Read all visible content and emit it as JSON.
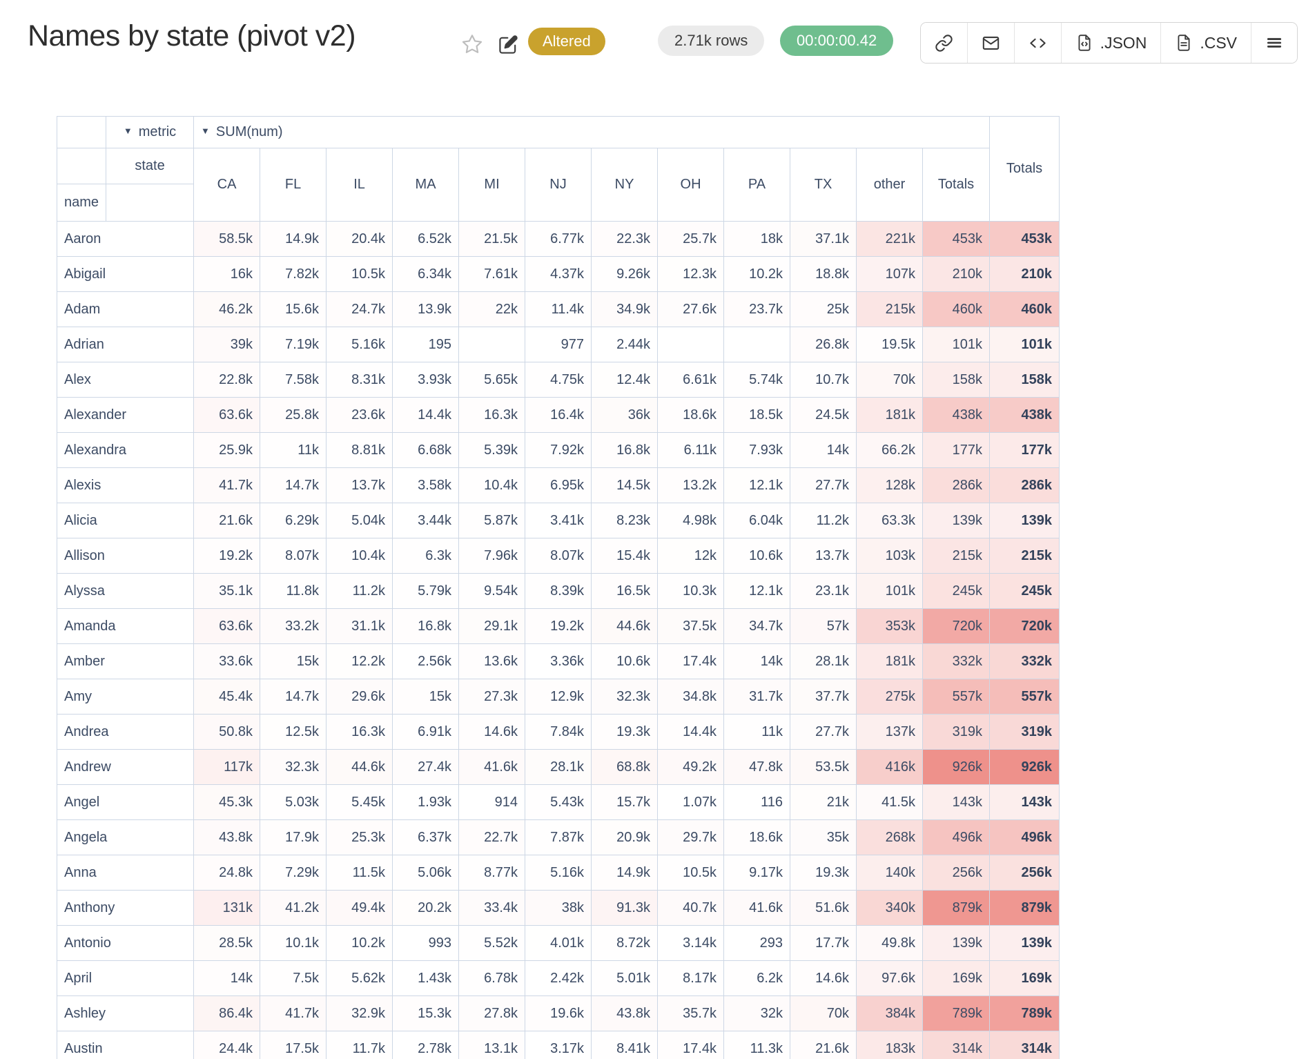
{
  "header": {
    "title": "Names by state (pivot v2)",
    "status_badge": "Altered",
    "rows_pill": "2.71k rows",
    "duration_pill": "00:00:00.42",
    "toolbar": {
      "json_label": ".JSON",
      "csv_label": ".CSV",
      "icons": [
        "link-icon",
        "mail-icon",
        "code-icon",
        "file-json-icon",
        "file-csv-icon",
        "menu-icon"
      ]
    }
  },
  "colors": {
    "badge_gold": "#c9a22d",
    "timer_green": "#6fbe8e",
    "heatmap_max": "#ee918b",
    "table_border": "#cdd7e5",
    "table_text": "#3c4b64"
  },
  "pivot": {
    "dropdown_arrow": "▼",
    "metric_label": "metric",
    "aggregator": "SUM(num)",
    "col_attr": "state",
    "row_attr": "name",
    "grand_total_label": "Totals",
    "value_columns": [
      "CA",
      "FL",
      "IL",
      "MA",
      "MI",
      "NJ",
      "NY",
      "OH",
      "PA",
      "TX",
      "other",
      "Totals"
    ],
    "rows": [
      {
        "name": "Aaron",
        "values": [
          "58.5k",
          "14.9k",
          "20.4k",
          "6.52k",
          "21.5k",
          "6.77k",
          "22.3k",
          "25.7k",
          "18k",
          "37.1k",
          "221k",
          "453k"
        ],
        "grand": "453k"
      },
      {
        "name": "Abigail",
        "values": [
          "16k",
          "7.82k",
          "10.5k",
          "6.34k",
          "7.61k",
          "4.37k",
          "9.26k",
          "12.3k",
          "10.2k",
          "18.8k",
          "107k",
          "210k"
        ],
        "grand": "210k"
      },
      {
        "name": "Adam",
        "values": [
          "46.2k",
          "15.6k",
          "24.7k",
          "13.9k",
          "22k",
          "11.4k",
          "34.9k",
          "27.6k",
          "23.7k",
          "25k",
          "215k",
          "460k"
        ],
        "grand": "460k"
      },
      {
        "name": "Adrian",
        "values": [
          "39k",
          "7.19k",
          "5.16k",
          "195",
          "",
          "977",
          "2.44k",
          "",
          "",
          "26.8k",
          "19.5k",
          "101k"
        ],
        "grand": "101k"
      },
      {
        "name": "Alex",
        "values": [
          "22.8k",
          "7.58k",
          "8.31k",
          "3.93k",
          "5.65k",
          "4.75k",
          "12.4k",
          "6.61k",
          "5.74k",
          "10.7k",
          "70k",
          "158k"
        ],
        "grand": "158k"
      },
      {
        "name": "Alexander",
        "values": [
          "63.6k",
          "25.8k",
          "23.6k",
          "14.4k",
          "16.3k",
          "16.4k",
          "36k",
          "18.6k",
          "18.5k",
          "24.5k",
          "181k",
          "438k"
        ],
        "grand": "438k"
      },
      {
        "name": "Alexandra",
        "values": [
          "25.9k",
          "11k",
          "8.81k",
          "6.68k",
          "5.39k",
          "7.92k",
          "16.8k",
          "6.11k",
          "7.93k",
          "14k",
          "66.2k",
          "177k"
        ],
        "grand": "177k"
      },
      {
        "name": "Alexis",
        "values": [
          "41.7k",
          "14.7k",
          "13.7k",
          "3.58k",
          "10.4k",
          "6.95k",
          "14.5k",
          "13.2k",
          "12.1k",
          "27.7k",
          "128k",
          "286k"
        ],
        "grand": "286k"
      },
      {
        "name": "Alicia",
        "values": [
          "21.6k",
          "6.29k",
          "5.04k",
          "3.44k",
          "5.87k",
          "3.41k",
          "8.23k",
          "4.98k",
          "6.04k",
          "11.2k",
          "63.3k",
          "139k"
        ],
        "grand": "139k"
      },
      {
        "name": "Allison",
        "values": [
          "19.2k",
          "8.07k",
          "10.4k",
          "6.3k",
          "7.96k",
          "8.07k",
          "15.4k",
          "12k",
          "10.6k",
          "13.7k",
          "103k",
          "215k"
        ],
        "grand": "215k"
      },
      {
        "name": "Alyssa",
        "values": [
          "35.1k",
          "11.8k",
          "11.2k",
          "5.79k",
          "9.54k",
          "8.39k",
          "16.5k",
          "10.3k",
          "12.1k",
          "23.1k",
          "101k",
          "245k"
        ],
        "grand": "245k"
      },
      {
        "name": "Amanda",
        "values": [
          "63.6k",
          "33.2k",
          "31.1k",
          "16.8k",
          "29.1k",
          "19.2k",
          "44.6k",
          "37.5k",
          "34.7k",
          "57k",
          "353k",
          "720k"
        ],
        "grand": "720k"
      },
      {
        "name": "Amber",
        "values": [
          "33.6k",
          "15k",
          "12.2k",
          "2.56k",
          "13.6k",
          "3.36k",
          "10.6k",
          "17.4k",
          "14k",
          "28.1k",
          "181k",
          "332k"
        ],
        "grand": "332k"
      },
      {
        "name": "Amy",
        "values": [
          "45.4k",
          "14.7k",
          "29.6k",
          "15k",
          "27.3k",
          "12.9k",
          "32.3k",
          "34.8k",
          "31.7k",
          "37.7k",
          "275k",
          "557k"
        ],
        "grand": "557k"
      },
      {
        "name": "Andrea",
        "values": [
          "50.8k",
          "12.5k",
          "16.3k",
          "6.91k",
          "14.6k",
          "7.84k",
          "19.3k",
          "14.4k",
          "11k",
          "27.7k",
          "137k",
          "319k"
        ],
        "grand": "319k"
      },
      {
        "name": "Andrew",
        "values": [
          "117k",
          "32.3k",
          "44.6k",
          "27.4k",
          "41.6k",
          "28.1k",
          "68.8k",
          "49.2k",
          "47.8k",
          "53.5k",
          "416k",
          "926k"
        ],
        "grand": "926k"
      },
      {
        "name": "Angel",
        "values": [
          "45.3k",
          "5.03k",
          "5.45k",
          "1.93k",
          "914",
          "5.43k",
          "15.7k",
          "1.07k",
          "116",
          "21k",
          "41.5k",
          "143k"
        ],
        "grand": "143k"
      },
      {
        "name": "Angela",
        "values": [
          "43.8k",
          "17.9k",
          "25.3k",
          "6.37k",
          "22.7k",
          "7.87k",
          "20.9k",
          "29.7k",
          "18.6k",
          "35k",
          "268k",
          "496k"
        ],
        "grand": "496k"
      },
      {
        "name": "Anna",
        "values": [
          "24.8k",
          "7.29k",
          "11.5k",
          "5.06k",
          "8.77k",
          "5.16k",
          "14.9k",
          "10.5k",
          "9.17k",
          "19.3k",
          "140k",
          "256k"
        ],
        "grand": "256k"
      },
      {
        "name": "Anthony",
        "values": [
          "131k",
          "41.2k",
          "49.4k",
          "20.2k",
          "33.4k",
          "38k",
          "91.3k",
          "40.7k",
          "41.6k",
          "51.6k",
          "340k",
          "879k"
        ],
        "grand": "879k"
      },
      {
        "name": "Antonio",
        "values": [
          "28.5k",
          "10.1k",
          "10.2k",
          "993",
          "5.52k",
          "4.01k",
          "8.72k",
          "3.14k",
          "293",
          "17.7k",
          "49.8k",
          "139k"
        ],
        "grand": "139k"
      },
      {
        "name": "April",
        "values": [
          "14k",
          "7.5k",
          "5.62k",
          "1.43k",
          "6.78k",
          "2.42k",
          "5.01k",
          "8.17k",
          "6.2k",
          "14.6k",
          "97.6k",
          "169k"
        ],
        "grand": "169k"
      },
      {
        "name": "Ashley",
        "values": [
          "86.4k",
          "41.7k",
          "32.9k",
          "15.3k",
          "27.8k",
          "19.6k",
          "43.8k",
          "35.7k",
          "32k",
          "70k",
          "384k",
          "789k"
        ],
        "grand": "789k"
      },
      {
        "name": "Austin",
        "values": [
          "24.4k",
          "17.5k",
          "11.7k",
          "2.78k",
          "13.1k",
          "3.17k",
          "8.41k",
          "17.4k",
          "11.3k",
          "21.6k",
          "183k",
          "314k"
        ],
        "grand": "314k"
      }
    ]
  }
}
